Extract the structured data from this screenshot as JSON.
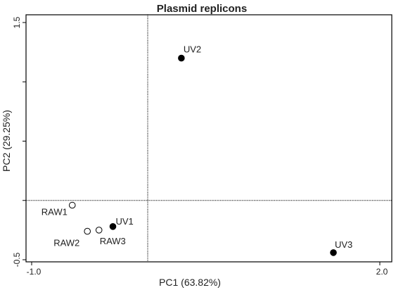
{
  "chart_data": {
    "type": "scatter",
    "title": "Plasmid replicons",
    "xlabel": "PC1 (63.82%)",
    "ylabel": "PC2 (29.25%)",
    "xlim": [
      -1.0,
      2.0
    ],
    "ylim": [
      -0.5,
      1.5
    ],
    "x_tick_labels": [
      {
        "value": -1.0,
        "label": "-1.0"
      },
      {
        "value": 2.0,
        "label": "2.0"
      }
    ],
    "y_tick_labels": [
      {
        "value": -0.5,
        "label": "-0.5"
      },
      {
        "value": 1.5,
        "label": "1.5"
      }
    ],
    "y_minor_ticks": [
      0.0,
      0.5,
      1.0
    ],
    "reference_lines": {
      "x": 0.0,
      "y": 0.0,
      "style": "dotted"
    },
    "grid": false,
    "legend": "none",
    "points": [
      {
        "label": "UV2",
        "x": 0.29,
        "y": 1.2,
        "filled": true
      },
      {
        "label": "RAW1",
        "x": -0.65,
        "y": -0.04,
        "filled": false
      },
      {
        "label": "UV1",
        "x": -0.3,
        "y": -0.22,
        "filled": true
      },
      {
        "label": "RAW2",
        "x": -0.52,
        "y": -0.26,
        "filled": false
      },
      {
        "label": "RAW3",
        "x": -0.42,
        "y": -0.25,
        "filled": false
      },
      {
        "label": "UV3",
        "x": 1.6,
        "y": -0.44,
        "filled": true
      }
    ],
    "colors": {
      "marker": "#000000",
      "axis": "#000000",
      "text": "#222222"
    }
  }
}
